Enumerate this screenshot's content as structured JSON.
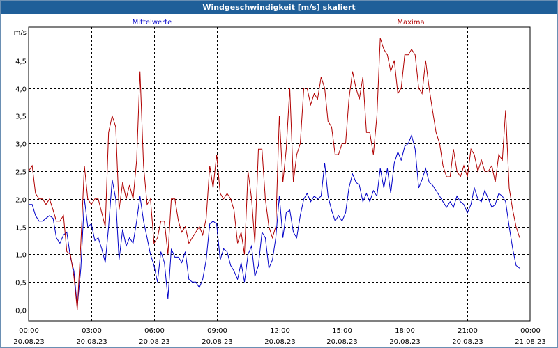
{
  "window": {
    "title": "Windgeschwindigkeit [m/s] skaliert"
  },
  "colors": {
    "mean": "#0000c8",
    "max": "#b00000",
    "grid": "#000000",
    "titlebar": "#1f5f99"
  },
  "chart_data": {
    "type": "line",
    "title": "Windgeschwindigkeit [m/s] skaliert",
    "ylabel": "m/s",
    "xlabel": "",
    "ylim": [
      -0.2,
      5.1
    ],
    "yticks": [
      "0,0",
      "0,5",
      "1,0",
      "1,5",
      "2,0",
      "2,5",
      "3,0",
      "3,5",
      "4,0",
      "4,5"
    ],
    "xlim_hours": [
      0,
      24
    ],
    "xticks": [
      {
        "time": "00:00",
        "date": "20.08.23"
      },
      {
        "time": "03:00",
        "date": "20.08.23"
      },
      {
        "time": "06:00",
        "date": "20.08.23"
      },
      {
        "time": "09:00",
        "date": "20.08.23"
      },
      {
        "time": "12:00",
        "date": "20.08.23"
      },
      {
        "time": "15:00",
        "date": "20.08.23"
      },
      {
        "time": "18:00",
        "date": "20.08.23"
      },
      {
        "time": "21:00",
        "date": "20.08.23"
      },
      {
        "time": "00:00",
        "date": "21.08.23"
      }
    ],
    "grid": true,
    "series": [
      {
        "name": "Mittelwerte",
        "color": "#0000c8",
        "points": [
          [
            0.0,
            1.9
          ],
          [
            0.17,
            1.9
          ],
          [
            0.33,
            1.7
          ],
          [
            0.5,
            1.6
          ],
          [
            0.67,
            1.6
          ],
          [
            0.83,
            1.65
          ],
          [
            1.0,
            1.7
          ],
          [
            1.17,
            1.65
          ],
          [
            1.33,
            1.3
          ],
          [
            1.5,
            1.2
          ],
          [
            1.67,
            1.35
          ],
          [
            1.83,
            1.4
          ],
          [
            2.0,
            0.95
          ],
          [
            2.17,
            0.7
          ],
          [
            2.33,
            0.05
          ],
          [
            2.5,
            0.75
          ],
          [
            2.67,
            2.0
          ],
          [
            2.83,
            1.5
          ],
          [
            3.0,
            1.55
          ],
          [
            3.17,
            1.25
          ],
          [
            3.33,
            1.3
          ],
          [
            3.5,
            1.1
          ],
          [
            3.67,
            0.85
          ],
          [
            3.83,
            1.5
          ],
          [
            4.0,
            2.35
          ],
          [
            4.17,
            2.0
          ],
          [
            4.33,
            0.9
          ],
          [
            4.5,
            1.45
          ],
          [
            4.67,
            1.15
          ],
          [
            4.83,
            1.3
          ],
          [
            5.0,
            1.2
          ],
          [
            5.17,
            1.6
          ],
          [
            5.33,
            2.05
          ],
          [
            5.5,
            1.6
          ],
          [
            5.67,
            1.3
          ],
          [
            5.83,
            1.0
          ],
          [
            6.0,
            0.8
          ],
          [
            6.17,
            0.5
          ],
          [
            6.33,
            1.05
          ],
          [
            6.5,
            0.85
          ],
          [
            6.67,
            0.2
          ],
          [
            6.83,
            1.1
          ],
          [
            7.0,
            0.95
          ],
          [
            7.17,
            0.95
          ],
          [
            7.33,
            0.85
          ],
          [
            7.5,
            1.05
          ],
          [
            7.67,
            0.55
          ],
          [
            7.83,
            0.5
          ],
          [
            8.0,
            0.5
          ],
          [
            8.17,
            0.4
          ],
          [
            8.33,
            0.55
          ],
          [
            8.5,
            0.9
          ],
          [
            8.67,
            1.55
          ],
          [
            8.83,
            1.6
          ],
          [
            9.0,
            1.55
          ],
          [
            9.17,
            0.9
          ],
          [
            9.33,
            1.1
          ],
          [
            9.5,
            1.05
          ],
          [
            9.67,
            0.8
          ],
          [
            9.83,
            0.7
          ],
          [
            10.0,
            0.55
          ],
          [
            10.17,
            0.85
          ],
          [
            10.33,
            0.5
          ],
          [
            10.5,
            1.0
          ],
          [
            10.67,
            1.15
          ],
          [
            10.83,
            0.6
          ],
          [
            11.0,
            0.8
          ],
          [
            11.17,
            1.4
          ],
          [
            11.33,
            1.3
          ],
          [
            11.5,
            0.75
          ],
          [
            11.67,
            0.9
          ],
          [
            11.83,
            1.3
          ],
          [
            12.0,
            2.05
          ],
          [
            12.17,
            1.3
          ],
          [
            12.33,
            1.75
          ],
          [
            12.5,
            1.8
          ],
          [
            12.67,
            1.4
          ],
          [
            12.83,
            1.3
          ],
          [
            13.0,
            1.7
          ],
          [
            13.17,
            2.0
          ],
          [
            13.33,
            2.1
          ],
          [
            13.5,
            1.95
          ],
          [
            13.67,
            2.05
          ],
          [
            13.83,
            2.0
          ],
          [
            14.0,
            2.05
          ],
          [
            14.17,
            2.65
          ],
          [
            14.33,
            2.05
          ],
          [
            14.5,
            1.8
          ],
          [
            14.67,
            1.6
          ],
          [
            14.83,
            1.7
          ],
          [
            15.0,
            1.6
          ],
          [
            15.17,
            1.75
          ],
          [
            15.33,
            2.2
          ],
          [
            15.5,
            2.45
          ],
          [
            15.67,
            2.3
          ],
          [
            15.83,
            2.25
          ],
          [
            16.0,
            1.95
          ],
          [
            16.17,
            2.1
          ],
          [
            16.33,
            1.95
          ],
          [
            16.5,
            2.15
          ],
          [
            16.67,
            2.05
          ],
          [
            16.83,
            2.55
          ],
          [
            17.0,
            2.2
          ],
          [
            17.17,
            2.55
          ],
          [
            17.33,
            2.1
          ],
          [
            17.5,
            2.65
          ],
          [
            17.67,
            2.85
          ],
          [
            17.83,
            2.7
          ],
          [
            18.0,
            2.95
          ],
          [
            18.17,
            3.0
          ],
          [
            18.33,
            3.15
          ],
          [
            18.5,
            2.9
          ],
          [
            18.67,
            2.2
          ],
          [
            18.83,
            2.35
          ],
          [
            19.0,
            2.55
          ],
          [
            19.17,
            2.3
          ],
          [
            19.33,
            2.25
          ],
          [
            19.5,
            2.15
          ],
          [
            19.67,
            2.05
          ],
          [
            19.83,
            1.95
          ],
          [
            20.0,
            1.85
          ],
          [
            20.17,
            1.95
          ],
          [
            20.33,
            1.85
          ],
          [
            20.5,
            2.05
          ],
          [
            20.67,
            1.95
          ],
          [
            20.83,
            1.9
          ],
          [
            21.0,
            1.75
          ],
          [
            21.17,
            1.9
          ],
          [
            21.33,
            2.2
          ],
          [
            21.5,
            2.0
          ],
          [
            21.67,
            1.95
          ],
          [
            21.83,
            2.15
          ],
          [
            22.0,
            2.0
          ],
          [
            22.17,
            1.85
          ],
          [
            22.33,
            1.9
          ],
          [
            22.5,
            2.1
          ],
          [
            22.67,
            2.05
          ],
          [
            22.83,
            1.95
          ],
          [
            23.0,
            1.5
          ],
          [
            23.17,
            1.1
          ],
          [
            23.33,
            0.8
          ],
          [
            23.5,
            0.75
          ]
        ]
      },
      {
        "name": "Maxima",
        "color": "#b00000",
        "points": [
          [
            0.0,
            2.5
          ],
          [
            0.17,
            2.6
          ],
          [
            0.33,
            2.1
          ],
          [
            0.5,
            2.0
          ],
          [
            0.67,
            2.0
          ],
          [
            0.83,
            1.9
          ],
          [
            1.0,
            2.0
          ],
          [
            1.17,
            1.8
          ],
          [
            1.33,
            1.6
          ],
          [
            1.5,
            1.6
          ],
          [
            1.67,
            1.7
          ],
          [
            1.83,
            1.05
          ],
          [
            2.0,
            1.0
          ],
          [
            2.17,
            0.6
          ],
          [
            2.33,
            0.0
          ],
          [
            2.5,
            1.2
          ],
          [
            2.67,
            2.6
          ],
          [
            2.83,
            2.0
          ],
          [
            3.0,
            1.9
          ],
          [
            3.17,
            2.0
          ],
          [
            3.33,
            2.0
          ],
          [
            3.5,
            1.75
          ],
          [
            3.67,
            1.5
          ],
          [
            3.83,
            3.2
          ],
          [
            4.0,
            3.5
          ],
          [
            4.17,
            3.3
          ],
          [
            4.33,
            1.8
          ],
          [
            4.5,
            2.3
          ],
          [
            4.67,
            2.0
          ],
          [
            4.83,
            2.25
          ],
          [
            5.0,
            2.0
          ],
          [
            5.17,
            2.7
          ],
          [
            5.33,
            4.3
          ],
          [
            5.5,
            2.6
          ],
          [
            5.67,
            1.9
          ],
          [
            5.83,
            2.0
          ],
          [
            6.0,
            1.2
          ],
          [
            6.17,
            1.3
          ],
          [
            6.33,
            1.6
          ],
          [
            6.5,
            1.6
          ],
          [
            6.67,
            1.0
          ],
          [
            6.83,
            2.0
          ],
          [
            7.0,
            2.0
          ],
          [
            7.17,
            1.6
          ],
          [
            7.33,
            1.4
          ],
          [
            7.5,
            1.5
          ],
          [
            7.67,
            1.2
          ],
          [
            7.83,
            1.3
          ],
          [
            8.0,
            1.4
          ],
          [
            8.17,
            1.5
          ],
          [
            8.33,
            1.35
          ],
          [
            8.5,
            1.65
          ],
          [
            8.67,
            2.6
          ],
          [
            8.83,
            2.2
          ],
          [
            9.0,
            2.8
          ],
          [
            9.17,
            2.1
          ],
          [
            9.33,
            2.0
          ],
          [
            9.5,
            2.1
          ],
          [
            9.67,
            2.0
          ],
          [
            9.83,
            1.8
          ],
          [
            10.0,
            1.2
          ],
          [
            10.17,
            1.4
          ],
          [
            10.33,
            1.0
          ],
          [
            10.5,
            2.5
          ],
          [
            10.67,
            2.0
          ],
          [
            10.83,
            1.2
          ],
          [
            11.0,
            2.9
          ],
          [
            11.17,
            2.9
          ],
          [
            11.33,
            2.0
          ],
          [
            11.5,
            1.5
          ],
          [
            11.67,
            1.3
          ],
          [
            11.83,
            1.5
          ],
          [
            12.0,
            3.5
          ],
          [
            12.17,
            2.3
          ],
          [
            12.33,
            2.9
          ],
          [
            12.5,
            4.0
          ],
          [
            12.67,
            2.3
          ],
          [
            12.83,
            2.8
          ],
          [
            13.0,
            3.0
          ],
          [
            13.17,
            4.0
          ],
          [
            13.33,
            4.0
          ],
          [
            13.5,
            3.7
          ],
          [
            13.67,
            3.9
          ],
          [
            13.83,
            3.8
          ],
          [
            14.0,
            4.2
          ],
          [
            14.17,
            4.0
          ],
          [
            14.33,
            3.4
          ],
          [
            14.5,
            3.3
          ],
          [
            14.67,
            2.8
          ],
          [
            14.83,
            2.8
          ],
          [
            15.0,
            3.0
          ],
          [
            15.17,
            3.0
          ],
          [
            15.33,
            3.8
          ],
          [
            15.5,
            4.3
          ],
          [
            15.67,
            4.0
          ],
          [
            15.83,
            3.8
          ],
          [
            16.0,
            4.2
          ],
          [
            16.17,
            3.2
          ],
          [
            16.33,
            3.2
          ],
          [
            16.5,
            2.8
          ],
          [
            16.67,
            3.5
          ],
          [
            16.83,
            4.9
          ],
          [
            17.0,
            4.7
          ],
          [
            17.17,
            4.6
          ],
          [
            17.33,
            4.3
          ],
          [
            17.5,
            4.5
          ],
          [
            17.67,
            3.9
          ],
          [
            17.83,
            4.0
          ],
          [
            18.0,
            4.6
          ],
          [
            18.17,
            4.6
          ],
          [
            18.33,
            4.7
          ],
          [
            18.5,
            4.6
          ],
          [
            18.67,
            4.0
          ],
          [
            18.83,
            3.9
          ],
          [
            19.0,
            4.5
          ],
          [
            19.17,
            4.0
          ],
          [
            19.33,
            3.6
          ],
          [
            19.5,
            3.2
          ],
          [
            19.67,
            3.0
          ],
          [
            19.83,
            2.6
          ],
          [
            20.0,
            2.4
          ],
          [
            20.17,
            2.4
          ],
          [
            20.33,
            2.9
          ],
          [
            20.5,
            2.5
          ],
          [
            20.67,
            2.4
          ],
          [
            20.83,
            2.6
          ],
          [
            21.0,
            2.4
          ],
          [
            21.17,
            2.9
          ],
          [
            21.33,
            2.8
          ],
          [
            21.5,
            2.5
          ],
          [
            21.67,
            2.7
          ],
          [
            21.83,
            2.5
          ],
          [
            22.0,
            2.5
          ],
          [
            22.17,
            2.6
          ],
          [
            22.33,
            2.3
          ],
          [
            22.5,
            2.8
          ],
          [
            22.67,
            2.7
          ],
          [
            22.83,
            3.6
          ],
          [
            23.0,
            2.2
          ],
          [
            23.17,
            1.8
          ],
          [
            23.33,
            1.5
          ],
          [
            23.5,
            1.3
          ]
        ]
      }
    ]
  }
}
